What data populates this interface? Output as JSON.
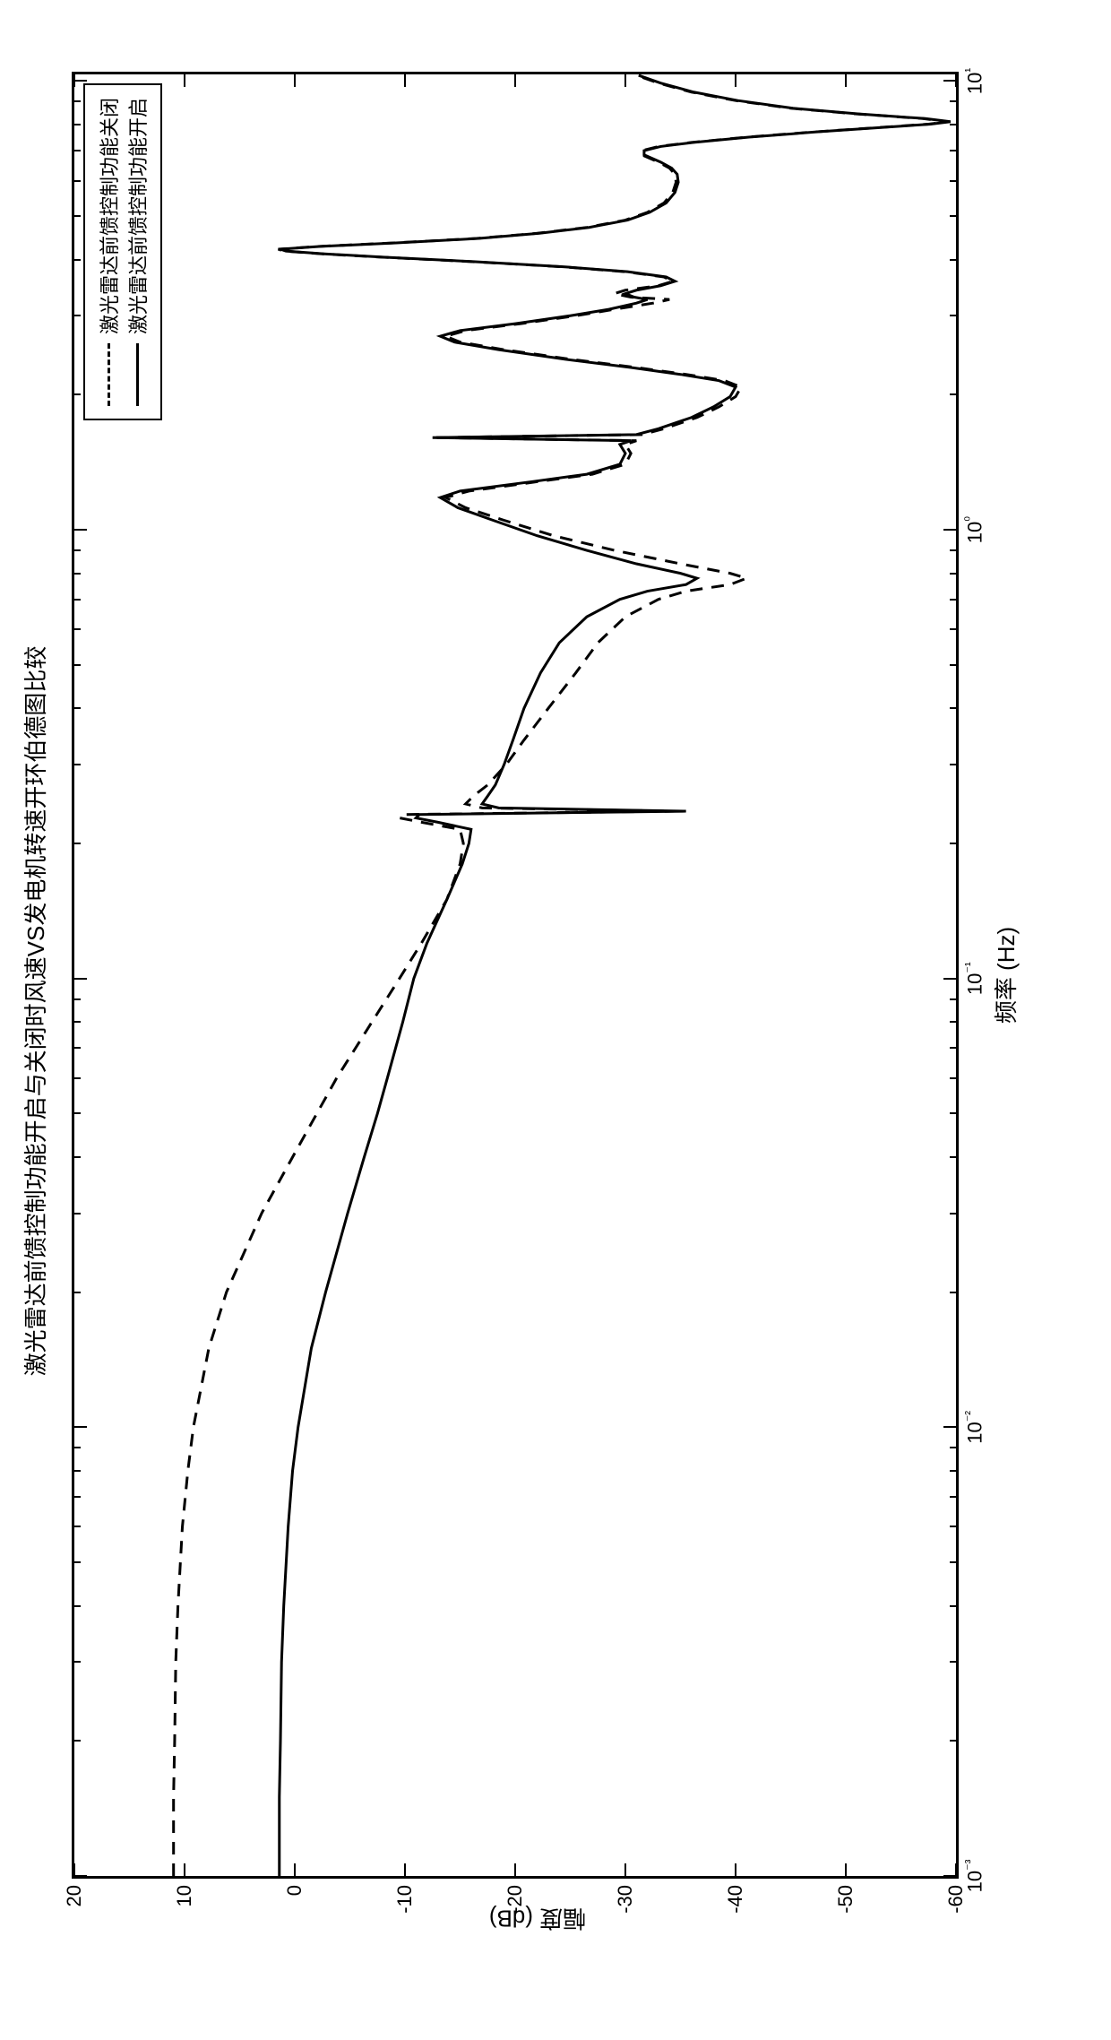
{
  "chart": {
    "type": "line",
    "title": "激光雷达前馈控制功能开启与关闭时风速VS发电机转速开环伯德图比较",
    "title_fontsize": 26,
    "xlabel": "频率 (Hz)",
    "ylabel": "幅度 (dB)",
    "label_fontsize": 26,
    "tick_fontsize": 22,
    "background_color": "#ffffff",
    "axis_color": "#000000",
    "line_color": "#000000",
    "line_width": 3,
    "xscale": "log",
    "xlim": [
      0.001,
      10.35
    ],
    "ylim": [
      -60,
      20
    ],
    "xticks": [
      {
        "value": 0.001,
        "label": "10⁻³"
      },
      {
        "value": 0.01,
        "label": "10⁻²"
      },
      {
        "value": 0.1,
        "label": "10⁻¹"
      },
      {
        "value": 1,
        "label": "10⁰"
      },
      {
        "value": 10,
        "label": "10¹"
      }
    ],
    "yticks": [
      -60,
      -50,
      -40,
      -30,
      -20,
      -10,
      0,
      10,
      20
    ],
    "tick_len_major": 14,
    "tick_len_minor": 7,
    "legend": {
      "position": "top-right",
      "border_color": "#000000",
      "font_size": 22,
      "items": [
        {
          "label": "激光雷达前馈控制功能关闭",
          "dash": "dashed"
        },
        {
          "label": "激光雷达前馈控制功能开启",
          "dash": "solid"
        }
      ]
    },
    "series": [
      {
        "name": "off",
        "dash": "dashed",
        "data": [
          [
            0.001,
            11
          ],
          [
            0.0015,
            11
          ],
          [
            0.002,
            10.9
          ],
          [
            0.003,
            10.8
          ],
          [
            0.004,
            10.6
          ],
          [
            0.006,
            10.2
          ],
          [
            0.008,
            9.7
          ],
          [
            0.01,
            9.2
          ],
          [
            0.015,
            7.8
          ],
          [
            0.02,
            6.2
          ],
          [
            0.03,
            3.0
          ],
          [
            0.04,
            0.2
          ],
          [
            0.05,
            -2.0
          ],
          [
            0.06,
            -3.8
          ],
          [
            0.08,
            -7.0
          ],
          [
            0.1,
            -9.5
          ],
          [
            0.12,
            -11.5
          ],
          [
            0.15,
            -13.8
          ],
          [
            0.18,
            -15.0
          ],
          [
            0.2,
            -15.3
          ],
          [
            0.215,
            -15.0
          ],
          [
            0.223,
            -11.5
          ],
          [
            0.228,
            -9.5
          ],
          [
            0.232,
            -9.8
          ],
          [
            0.236,
            -34.5
          ],
          [
            0.24,
            -17.0
          ],
          [
            0.245,
            -15.5
          ],
          [
            0.255,
            -16.2
          ],
          [
            0.27,
            -17.5
          ],
          [
            0.3,
            -19.2
          ],
          [
            0.34,
            -20.8
          ],
          [
            0.4,
            -23.0
          ],
          [
            0.48,
            -25.5
          ],
          [
            0.56,
            -27.5
          ],
          [
            0.64,
            -30.0
          ],
          [
            0.7,
            -33.0
          ],
          [
            0.73,
            -35.5
          ],
          [
            0.755,
            -39.5
          ],
          [
            0.78,
            -41.0
          ],
          [
            0.8,
            -39.5
          ],
          [
            0.84,
            -35.0
          ],
          [
            0.9,
            -29.0
          ],
          [
            0.97,
            -23.5
          ],
          [
            1.05,
            -19.0
          ],
          [
            1.12,
            -15.5
          ],
          [
            1.18,
            -13.7
          ],
          [
            1.22,
            -15.8
          ],
          [
            1.28,
            -22.0
          ],
          [
            1.33,
            -27.0
          ],
          [
            1.4,
            -30.0
          ],
          [
            1.48,
            -30.5
          ],
          [
            1.55,
            -30.0
          ],
          [
            1.58,
            -31.0
          ],
          [
            1.605,
            -12.5
          ],
          [
            1.63,
            -31.5
          ],
          [
            1.68,
            -33.5
          ],
          [
            1.78,
            -36.5
          ],
          [
            1.88,
            -38.5
          ],
          [
            1.98,
            -40.0
          ],
          [
            2.08,
            -40.5
          ],
          [
            2.15,
            -39.0
          ],
          [
            2.22,
            -35.5
          ],
          [
            2.3,
            -31.0
          ],
          [
            2.4,
            -25.0
          ],
          [
            2.52,
            -19.0
          ],
          [
            2.62,
            -15.0
          ],
          [
            2.7,
            -13.7
          ],
          [
            2.78,
            -15.5
          ],
          [
            2.88,
            -20.5
          ],
          [
            3.0,
            -25.5
          ],
          [
            3.1,
            -29.0
          ],
          [
            3.2,
            -32.5
          ],
          [
            3.26,
            -34.0
          ],
          [
            3.3,
            -30.5
          ],
          [
            3.36,
            -29.0
          ],
          [
            3.42,
            -30.0
          ],
          [
            3.5,
            -33.0
          ],
          [
            3.58,
            -34.3
          ],
          [
            3.66,
            -33.5
          ],
          [
            3.76,
            -30.0
          ],
          [
            3.86,
            -24.0
          ],
          [
            3.96,
            -16.0
          ],
          [
            4.05,
            -8.0
          ],
          [
            4.12,
            -2.5
          ],
          [
            4.18,
            1.0
          ],
          [
            4.22,
            1.5
          ],
          [
            4.28,
            -2.0
          ],
          [
            4.36,
            -9.0
          ],
          [
            4.46,
            -16.5
          ],
          [
            4.58,
            -22.0
          ],
          [
            4.72,
            -26.5
          ],
          [
            4.9,
            -30.0
          ],
          [
            5.1,
            -32.0
          ],
          [
            5.35,
            -33.5
          ],
          [
            5.65,
            -34.3
          ],
          [
            5.95,
            -34.6
          ],
          [
            6.2,
            -34.5
          ],
          [
            6.4,
            -34.0
          ],
          [
            6.6,
            -33.0
          ],
          [
            6.85,
            -31.5
          ],
          [
            7.0,
            -31.5
          ],
          [
            7.15,
            -33.0
          ],
          [
            7.3,
            -36.0
          ],
          [
            7.5,
            -41.0
          ],
          [
            7.7,
            -47.0
          ],
          [
            7.88,
            -53.0
          ],
          [
            8.02,
            -57.5
          ],
          [
            8.12,
            -59.3
          ],
          [
            8.25,
            -57.0
          ],
          [
            8.45,
            -51.0
          ],
          [
            8.7,
            -45.0
          ],
          [
            9.05,
            -40.0
          ],
          [
            9.45,
            -36.0
          ],
          [
            9.9,
            -33.0
          ],
          [
            10.3,
            -31.0
          ]
        ]
      },
      {
        "name": "on",
        "dash": "solid",
        "data": [
          [
            0.001,
            1.4
          ],
          [
            0.0015,
            1.4
          ],
          [
            0.002,
            1.3
          ],
          [
            0.003,
            1.2
          ],
          [
            0.004,
            1.0
          ],
          [
            0.006,
            0.6
          ],
          [
            0.008,
            0.2
          ],
          [
            0.01,
            -0.3
          ],
          [
            0.015,
            -1.5
          ],
          [
            0.02,
            -2.8
          ],
          [
            0.03,
            -4.8
          ],
          [
            0.04,
            -6.3
          ],
          [
            0.05,
            -7.5
          ],
          [
            0.06,
            -8.4
          ],
          [
            0.08,
            -9.8
          ],
          [
            0.1,
            -10.8
          ],
          [
            0.12,
            -12.0
          ],
          [
            0.15,
            -13.8
          ],
          [
            0.18,
            -15.2
          ],
          [
            0.2,
            -15.8
          ],
          [
            0.215,
            -16.0
          ],
          [
            0.223,
            -13.0
          ],
          [
            0.228,
            -11.0
          ],
          [
            0.232,
            -11.3
          ],
          [
            0.236,
            -35.5
          ],
          [
            0.24,
            -18.5
          ],
          [
            0.245,
            -17.0
          ],
          [
            0.255,
            -17.5
          ],
          [
            0.27,
            -18.2
          ],
          [
            0.3,
            -19.0
          ],
          [
            0.34,
            -19.8
          ],
          [
            0.4,
            -20.8
          ],
          [
            0.48,
            -22.3
          ],
          [
            0.56,
            -24.0
          ],
          [
            0.64,
            -26.5
          ],
          [
            0.7,
            -29.5
          ],
          [
            0.73,
            -32.0
          ],
          [
            0.755,
            -35.5
          ],
          [
            0.78,
            -36.5
          ],
          [
            0.8,
            -35.0
          ],
          [
            0.84,
            -31.0
          ],
          [
            0.9,
            -26.5
          ],
          [
            0.97,
            -22.0
          ],
          [
            1.05,
            -18.0
          ],
          [
            1.12,
            -14.8
          ],
          [
            1.18,
            -13.2
          ],
          [
            1.22,
            -15.0
          ],
          [
            1.28,
            -21.5
          ],
          [
            1.33,
            -26.5
          ],
          [
            1.4,
            -29.5
          ],
          [
            1.48,
            -30.0
          ],
          [
            1.55,
            -29.5
          ],
          [
            1.58,
            -30.5
          ],
          [
            1.605,
            -12.5
          ],
          [
            1.63,
            -31.0
          ],
          [
            1.68,
            -33.0
          ],
          [
            1.78,
            -36.0
          ],
          [
            1.88,
            -38.0
          ],
          [
            1.98,
            -39.5
          ],
          [
            2.08,
            -40.0
          ],
          [
            2.15,
            -38.5
          ],
          [
            2.22,
            -35.0
          ],
          [
            2.3,
            -30.5
          ],
          [
            2.4,
            -24.5
          ],
          [
            2.52,
            -18.5
          ],
          [
            2.62,
            -14.5
          ],
          [
            2.7,
            -13.2
          ],
          [
            2.78,
            -15.0
          ],
          [
            2.88,
            -20.0
          ],
          [
            3.0,
            -25.0
          ],
          [
            3.1,
            -28.5
          ],
          [
            3.2,
            -31.0
          ],
          [
            3.26,
            -32.0
          ],
          [
            3.3,
            -30.8
          ],
          [
            3.36,
            -30.0
          ],
          [
            3.42,
            -31.0
          ],
          [
            3.5,
            -33.2
          ],
          [
            3.58,
            -34.5
          ],
          [
            3.66,
            -33.7
          ],
          [
            3.76,
            -30.2
          ],
          [
            3.86,
            -24.2
          ],
          [
            3.96,
            -16.2
          ],
          [
            4.05,
            -8.2
          ],
          [
            4.12,
            -2.7
          ],
          [
            4.18,
            0.8
          ],
          [
            4.22,
            1.3
          ],
          [
            4.28,
            -2.2
          ],
          [
            4.36,
            -9.2
          ],
          [
            4.46,
            -16.7
          ],
          [
            4.58,
            -22.2
          ],
          [
            4.72,
            -26.7
          ],
          [
            4.9,
            -30.2
          ],
          [
            5.1,
            -32.2
          ],
          [
            5.35,
            -33.7
          ],
          [
            5.65,
            -34.5
          ],
          [
            5.95,
            -34.8
          ],
          [
            6.2,
            -34.7
          ],
          [
            6.4,
            -34.2
          ],
          [
            6.6,
            -33.2
          ],
          [
            6.85,
            -31.7
          ],
          [
            7.0,
            -31.7
          ],
          [
            7.15,
            -33.2
          ],
          [
            7.3,
            -36.2
          ],
          [
            7.5,
            -41.2
          ],
          [
            7.7,
            -47.2
          ],
          [
            7.88,
            -53.2
          ],
          [
            8.02,
            -57.7
          ],
          [
            8.12,
            -59.5
          ],
          [
            8.25,
            -57.2
          ],
          [
            8.45,
            -51.2
          ],
          [
            8.7,
            -45.2
          ],
          [
            9.05,
            -40.2
          ],
          [
            9.45,
            -36.2
          ],
          [
            9.9,
            -33.2
          ],
          [
            10.3,
            -31.2
          ]
        ]
      }
    ]
  }
}
